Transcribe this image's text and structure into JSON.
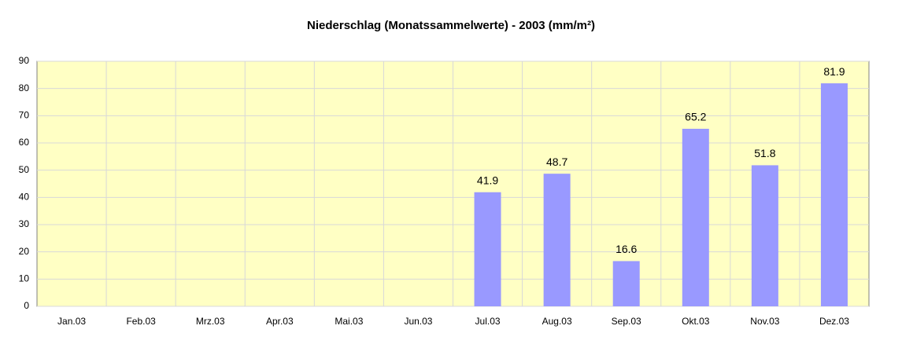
{
  "chart_data": {
    "type": "bar",
    "title": "Niederschlag (Monatssammelwerte) - 2003 (mm/m²)",
    "categories": [
      "Jan.03",
      "Feb.03",
      "Mrz.03",
      "Apr.03",
      "Mai.03",
      "Jun.03",
      "Jul.03",
      "Aug.03",
      "Sep.03",
      "Okt.03",
      "Nov.03",
      "Dez.03"
    ],
    "values": [
      null,
      null,
      null,
      null,
      null,
      null,
      41.9,
      48.7,
      16.6,
      65.2,
      51.8,
      81.9
    ],
    "color": "#9999ff",
    "ylim": [
      0,
      90
    ],
    "yticks": [
      0,
      10,
      20,
      30,
      40,
      50,
      60,
      70,
      80,
      90
    ],
    "grid": true
  }
}
